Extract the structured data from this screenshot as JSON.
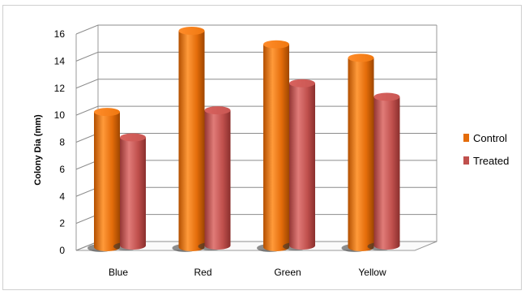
{
  "chart_data": {
    "type": "bar",
    "style": "3d-cylinder",
    "categories": [
      "Blue",
      "Red",
      "Green",
      "Yellow"
    ],
    "series": [
      {
        "name": "Control",
        "values": [
          10,
          16,
          15,
          14
        ],
        "color": "#e46c0a"
      },
      {
        "name": "Treated",
        "values": [
          8,
          10,
          12,
          11
        ],
        "color": "#c0504d"
      }
    ],
    "ylabel": "Colony Dia (mm)",
    "xlabel": "",
    "ylim": [
      0,
      16
    ],
    "yticks": [
      "0",
      "2",
      "4",
      "6",
      "8",
      "10",
      "12",
      "14",
      "16"
    ],
    "grid": true,
    "legend": "right"
  }
}
